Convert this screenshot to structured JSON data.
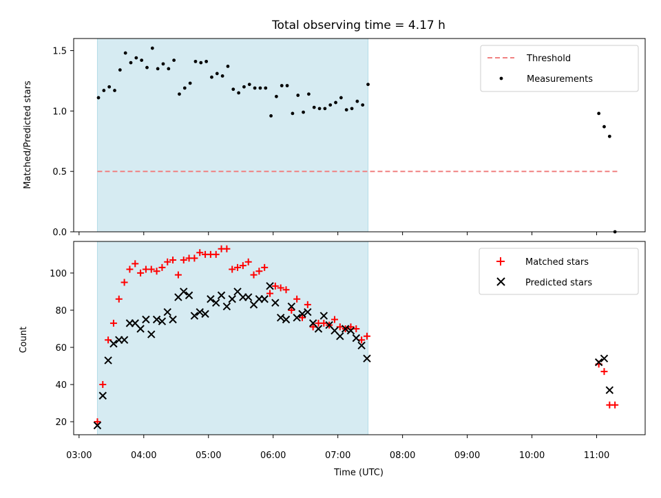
{
  "chart_data": [
    {
      "type": "scatter",
      "title": "Total observing time = 4.17 h",
      "xlabel": "",
      "ylabel": "Matched/Predicted stars",
      "xlim": [
        "02:55",
        "11:45"
      ],
      "ylim": [
        0,
        1.6
      ],
      "yticks": [
        "0.0",
        "0.5",
        "1.0",
        "1.5"
      ],
      "shaded_interval": [
        "03:17",
        "07:28"
      ],
      "grid": false,
      "legend_position": "top-right",
      "series": [
        {
          "name": "Threshold",
          "kind": "dashed-line",
          "color": "#f08080",
          "x": [
            "03:17",
            "11:20"
          ],
          "y": [
            0.5,
            0.5
          ]
        },
        {
          "name": "Measurements",
          "kind": "points",
          "color": "#000000",
          "points": [
            [
              "03:18",
              1.11
            ],
            [
              "03:23",
              1.17
            ],
            [
              "03:28",
              1.2
            ],
            [
              "03:33",
              1.17
            ],
            [
              "03:38",
              1.34
            ],
            [
              "03:43",
              1.48
            ],
            [
              "03:48",
              1.4
            ],
            [
              "03:53",
              1.44
            ],
            [
              "03:58",
              1.42
            ],
            [
              "04:03",
              1.36
            ],
            [
              "04:08",
              1.52
            ],
            [
              "04:13",
              1.35
            ],
            [
              "04:18",
              1.39
            ],
            [
              "04:23",
              1.35
            ],
            [
              "04:28",
              1.42
            ],
            [
              "04:33",
              1.14
            ],
            [
              "04:38",
              1.19
            ],
            [
              "04:43",
              1.23
            ],
            [
              "04:48",
              1.41
            ],
            [
              "04:53",
              1.4
            ],
            [
              "04:58",
              1.41
            ],
            [
              "05:03",
              1.28
            ],
            [
              "05:08",
              1.31
            ],
            [
              "05:13",
              1.29
            ],
            [
              "05:18",
              1.37
            ],
            [
              "05:23",
              1.18
            ],
            [
              "05:28",
              1.15
            ],
            [
              "05:33",
              1.2
            ],
            [
              "05:38",
              1.22
            ],
            [
              "05:43",
              1.19
            ],
            [
              "05:48",
              1.19
            ],
            [
              "05:53",
              1.19
            ],
            [
              "05:58",
              0.96
            ],
            [
              "06:03",
              1.12
            ],
            [
              "06:08",
              1.21
            ],
            [
              "06:13",
              1.21
            ],
            [
              "06:18",
              0.98
            ],
            [
              "06:23",
              1.13
            ],
            [
              "06:28",
              0.99
            ],
            [
              "06:33",
              1.14
            ],
            [
              "06:38",
              1.03
            ],
            [
              "06:43",
              1.02
            ],
            [
              "06:48",
              1.02
            ],
            [
              "06:53",
              1.05
            ],
            [
              "06:58",
              1.07
            ],
            [
              "07:03",
              1.11
            ],
            [
              "07:08",
              1.01
            ],
            [
              "07:13",
              1.02
            ],
            [
              "07:18",
              1.08
            ],
            [
              "07:23",
              1.05
            ],
            [
              "07:28",
              1.22
            ],
            [
              "11:02",
              0.98
            ],
            [
              "11:07",
              0.87
            ],
            [
              "11:12",
              0.79
            ],
            [
              "11:17",
              0.0
            ]
          ]
        }
      ]
    },
    {
      "type": "scatter",
      "title": "",
      "xlabel": "Time (UTC)",
      "ylabel": "Count",
      "xlim": [
        "02:55",
        "11:45"
      ],
      "ylim": [
        13,
        117
      ],
      "yticks": [
        "20",
        "40",
        "60",
        "80",
        "100"
      ],
      "xticks": [
        "03:00",
        "04:00",
        "05:00",
        "06:00",
        "07:00",
        "08:00",
        "09:00",
        "10:00",
        "11:00"
      ],
      "shaded_interval": [
        "03:17",
        "07:28"
      ],
      "grid": false,
      "legend_position": "top-right",
      "series": [
        {
          "name": "Matched stars",
          "marker": "plus",
          "color": "#ff0000",
          "points": [
            [
              "03:17",
              20
            ],
            [
              "03:22",
              40
            ],
            [
              "03:27",
              64
            ],
            [
              "03:32",
              73
            ],
            [
              "03:37",
              86
            ],
            [
              "03:42",
              95
            ],
            [
              "03:47",
              102
            ],
            [
              "03:52",
              105
            ],
            [
              "03:57",
              100
            ],
            [
              "04:02",
              102
            ],
            [
              "04:07",
              102
            ],
            [
              "04:12",
              101
            ],
            [
              "04:17",
              103
            ],
            [
              "04:22",
              106
            ],
            [
              "04:27",
              107
            ],
            [
              "04:32",
              99
            ],
            [
              "04:37",
              107
            ],
            [
              "04:42",
              108
            ],
            [
              "04:47",
              108
            ],
            [
              "04:52",
              111
            ],
            [
              "04:57",
              110
            ],
            [
              "05:02",
              110
            ],
            [
              "05:07",
              110
            ],
            [
              "05:12",
              113
            ],
            [
              "05:17",
              113
            ],
            [
              "05:22",
              102
            ],
            [
              "05:27",
              103
            ],
            [
              "05:32",
              104
            ],
            [
              "05:37",
              106
            ],
            [
              "05:42",
              99
            ],
            [
              "05:47",
              101
            ],
            [
              "05:52",
              103
            ],
            [
              "05:57",
              89
            ],
            [
              "06:02",
              93
            ],
            [
              "06:07",
              92
            ],
            [
              "06:12",
              91
            ],
            [
              "06:17",
              80
            ],
            [
              "06:22",
              86
            ],
            [
              "06:27",
              76
            ],
            [
              "06:32",
              83
            ],
            [
              "06:37",
              71
            ],
            [
              "06:42",
              73
            ],
            [
              "06:47",
              73
            ],
            [
              "06:52",
              72
            ],
            [
              "06:57",
              75
            ],
            [
              "07:02",
              71
            ],
            [
              "07:07",
              70
            ],
            [
              "07:12",
              71
            ],
            [
              "07:17",
              70
            ],
            [
              "07:22",
              64
            ],
            [
              "07:27",
              66
            ],
            [
              "11:02",
              51
            ],
            [
              "11:07",
              47
            ],
            [
              "11:12",
              29
            ],
            [
              "11:17",
              29
            ]
          ]
        },
        {
          "name": "Predicted stars",
          "marker": "x",
          "color": "#000000",
          "points": [
            [
              "03:17",
              18
            ],
            [
              "03:22",
              34
            ],
            [
              "03:27",
              53
            ],
            [
              "03:32",
              62
            ],
            [
              "03:37",
              64
            ],
            [
              "03:42",
              64
            ],
            [
              "03:47",
              73
            ],
            [
              "03:52",
              73
            ],
            [
              "03:57",
              70
            ],
            [
              "04:02",
              75
            ],
            [
              "04:07",
              67
            ],
            [
              "04:12",
              75
            ],
            [
              "04:17",
              74
            ],
            [
              "04:22",
              79
            ],
            [
              "04:27",
              75
            ],
            [
              "04:32",
              87
            ],
            [
              "04:37",
              90
            ],
            [
              "04:42",
              88
            ],
            [
              "04:47",
              77
            ],
            [
              "04:52",
              79
            ],
            [
              "04:57",
              78
            ],
            [
              "05:02",
              86
            ],
            [
              "05:07",
              84
            ],
            [
              "05:12",
              88
            ],
            [
              "05:17",
              82
            ],
            [
              "05:22",
              86
            ],
            [
              "05:27",
              90
            ],
            [
              "05:32",
              87
            ],
            [
              "05:37",
              87
            ],
            [
              "05:42",
              83
            ],
            [
              "05:47",
              86
            ],
            [
              "05:52",
              86
            ],
            [
              "05:57",
              93
            ],
            [
              "06:02",
              84
            ],
            [
              "06:07",
              76
            ],
            [
              "06:12",
              75
            ],
            [
              "06:17",
              82
            ],
            [
              "06:22",
              76
            ],
            [
              "06:27",
              78
            ],
            [
              "06:32",
              79
            ],
            [
              "06:37",
              73
            ],
            [
              "06:42",
              70
            ],
            [
              "06:47",
              77
            ],
            [
              "06:52",
              72
            ],
            [
              "06:57",
              69
            ],
            [
              "07:02",
              66
            ],
            [
              "07:07",
              70
            ],
            [
              "07:12",
              69
            ],
            [
              "07:17",
              65
            ],
            [
              "07:22",
              61
            ],
            [
              "07:27",
              54
            ],
            [
              "11:02",
              52
            ],
            [
              "11:07",
              54
            ],
            [
              "11:12",
              37
            ]
          ]
        }
      ]
    }
  ]
}
